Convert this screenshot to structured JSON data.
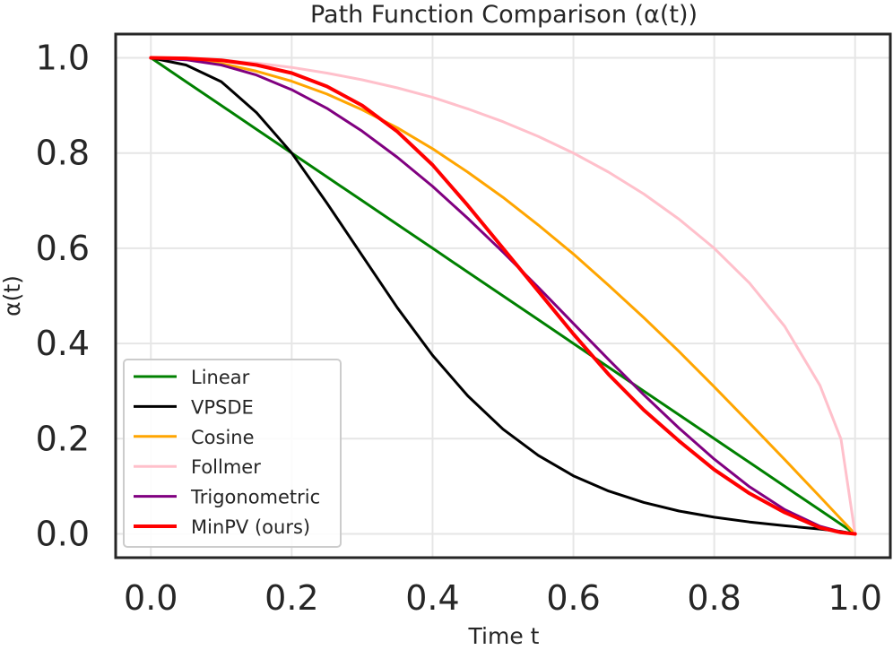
{
  "chart_data": {
    "type": "line",
    "title": "Path Function Comparison (α(t))",
    "xlabel": "Time t",
    "ylabel": "α(t)",
    "xlim": [
      -0.05,
      1.05
    ],
    "ylim": [
      -0.05,
      1.05
    ],
    "grid": true,
    "legend_position": "lower-left",
    "x_ticks": [
      {
        "value": 0.0,
        "label": "0.0"
      },
      {
        "value": 0.2,
        "label": "0.2"
      },
      {
        "value": 0.4,
        "label": "0.4"
      },
      {
        "value": 0.6,
        "label": "0.6"
      },
      {
        "value": 0.8,
        "label": "0.8"
      },
      {
        "value": 1.0,
        "label": "1.0"
      }
    ],
    "y_ticks": [
      {
        "value": 0.0,
        "label": "0.0"
      },
      {
        "value": 0.2,
        "label": "0.2"
      },
      {
        "value": 0.4,
        "label": "0.4"
      },
      {
        "value": 0.6,
        "label": "0.6"
      },
      {
        "value": 0.8,
        "label": "0.8"
      },
      {
        "value": 1.0,
        "label": "1.0"
      }
    ],
    "x": [
      0.0,
      0.05,
      0.1,
      0.15,
      0.2,
      0.25,
      0.3,
      0.35,
      0.4,
      0.45,
      0.5,
      0.55,
      0.6,
      0.65,
      0.7,
      0.75,
      0.8,
      0.85,
      0.9,
      0.95,
      0.98,
      1.0
    ],
    "series": [
      {
        "name": "Linear",
        "color": "#008000",
        "values": [
          1.0,
          0.95,
          0.9,
          0.85,
          0.8,
          0.75,
          0.7,
          0.65,
          0.6,
          0.55,
          0.5,
          0.45,
          0.4,
          0.35,
          0.3,
          0.25,
          0.2,
          0.15,
          0.1,
          0.05,
          0.02,
          0.0
        ]
      },
      {
        "name": "VPSDE",
        "color": "#000000",
        "values": [
          1.0,
          0.985,
          0.95,
          0.885,
          0.8,
          0.695,
          0.585,
          0.475,
          0.375,
          0.29,
          0.22,
          0.165,
          0.122,
          0.09,
          0.066,
          0.048,
          0.035,
          0.025,
          0.017,
          0.01,
          0.005,
          0.0
        ]
      },
      {
        "name": "Cosine",
        "color": "#FFA500",
        "values": [
          1.0,
          0.997,
          0.988,
          0.972,
          0.951,
          0.924,
          0.891,
          0.853,
          0.809,
          0.76,
          0.707,
          0.649,
          0.588,
          0.522,
          0.454,
          0.383,
          0.309,
          0.233,
          0.156,
          0.078,
          0.031,
          0.0
        ]
      },
      {
        "name": "Follmer",
        "color": "#FFC0CB",
        "values": [
          1.0,
          0.999,
          0.995,
          0.989,
          0.98,
          0.968,
          0.954,
          0.937,
          0.917,
          0.893,
          0.866,
          0.835,
          0.8,
          0.76,
          0.714,
          0.661,
          0.6,
          0.527,
          0.436,
          0.312,
          0.199,
          0.0
        ]
      },
      {
        "name": "Trigonometric",
        "color": "#800080",
        "values": [
          1.0,
          0.996,
          0.985,
          0.964,
          0.933,
          0.894,
          0.846,
          0.791,
          0.73,
          0.663,
          0.592,
          0.518,
          0.442,
          0.366,
          0.292,
          0.222,
          0.157,
          0.099,
          0.051,
          0.016,
          0.004,
          0.0
        ]
      },
      {
        "name": "MinPV (ours)",
        "color": "#FF0000",
        "values": [
          1.0,
          0.999,
          0.995,
          0.985,
          0.968,
          0.94,
          0.9,
          0.845,
          0.775,
          0.69,
          0.6,
          0.51,
          0.42,
          0.335,
          0.26,
          0.195,
          0.135,
          0.085,
          0.045,
          0.013,
          0.003,
          0.0
        ]
      }
    ]
  }
}
